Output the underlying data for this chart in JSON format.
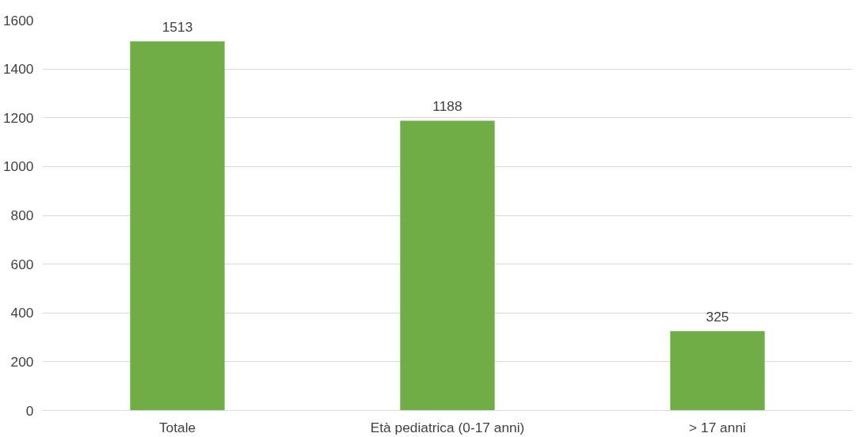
{
  "chart_data": {
    "type": "bar",
    "categories": [
      "Totale",
      "Età pediatrica (0-17 anni)",
      "> 17 anni"
    ],
    "values": [
      1513,
      1188,
      325
    ],
    "color": "#70ad47",
    "ylim": [
      0,
      1600
    ],
    "yticks": [
      0,
      200,
      400,
      600,
      800,
      1000,
      1200,
      1400,
      1600
    ],
    "grid": "y",
    "data_labels": true
  }
}
